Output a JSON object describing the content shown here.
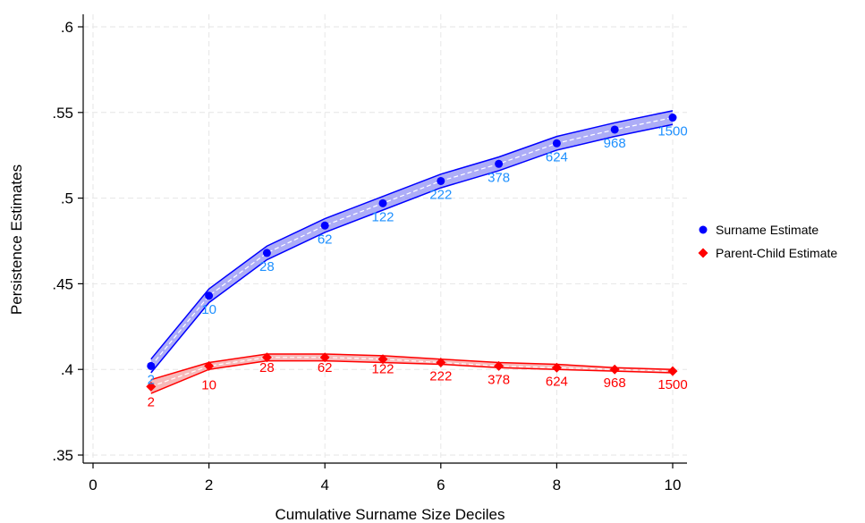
{
  "chart_data": {
    "type": "line",
    "xlabel": "Cumulative Surname Size Deciles",
    "ylabel": "Persistence Estimates",
    "xlim": [
      0,
      10
    ],
    "ylim": [
      0.35,
      0.6
    ],
    "x_ticks": [
      0,
      2,
      4,
      6,
      8,
      10
    ],
    "x_tick_labels": [
      "0",
      "2",
      "4",
      "6",
      "8",
      "10"
    ],
    "y_ticks": [
      0.35,
      0.4,
      0.45,
      0.5,
      0.55,
      0.6
    ],
    "y_tick_labels": [
      ".35",
      ".4",
      ".45",
      ".5",
      ".55",
      ".6"
    ],
    "grid": true,
    "legend_position": "right",
    "x": [
      1,
      2,
      3,
      4,
      5,
      6,
      7,
      8,
      9,
      10
    ],
    "series": [
      {
        "name": "Surname Estimate",
        "marker": "circle",
        "color": "#0000ff",
        "label_color": "#1e90ff",
        "band_color": "#6a6af0",
        "values": [
          0.402,
          0.443,
          0.468,
          0.484,
          0.497,
          0.51,
          0.52,
          0.532,
          0.54,
          0.547
        ],
        "ci_lower": [
          0.398,
          0.439,
          0.464,
          0.48,
          0.493,
          0.506,
          0.516,
          0.528,
          0.536,
          0.543
        ],
        "ci_upper": [
          0.406,
          0.447,
          0.472,
          0.488,
          0.501,
          0.514,
          0.524,
          0.536,
          0.544,
          0.551
        ],
        "point_labels": [
          "2",
          "10",
          "28",
          "62",
          "122",
          "222",
          "378",
          "624",
          "968",
          "1500"
        ]
      },
      {
        "name": "Parent-Child Estimate",
        "marker": "diamond",
        "color": "#ff0000",
        "label_color": "#ff0000",
        "band_color": "#f08080",
        "values": [
          0.39,
          0.402,
          0.407,
          0.407,
          0.406,
          0.404,
          0.402,
          0.401,
          0.4,
          0.399
        ],
        "ci_lower": [
          0.386,
          0.4,
          0.405,
          0.405,
          0.404,
          0.403,
          0.401,
          0.4,
          0.399,
          0.398
        ],
        "ci_upper": [
          0.394,
          0.404,
          0.409,
          0.409,
          0.408,
          0.406,
          0.404,
          0.403,
          0.401,
          0.4
        ],
        "point_labels": [
          "2",
          "10",
          "28",
          "62",
          "122",
          "222",
          "378",
          "624",
          "968",
          "1500"
        ]
      }
    ]
  }
}
